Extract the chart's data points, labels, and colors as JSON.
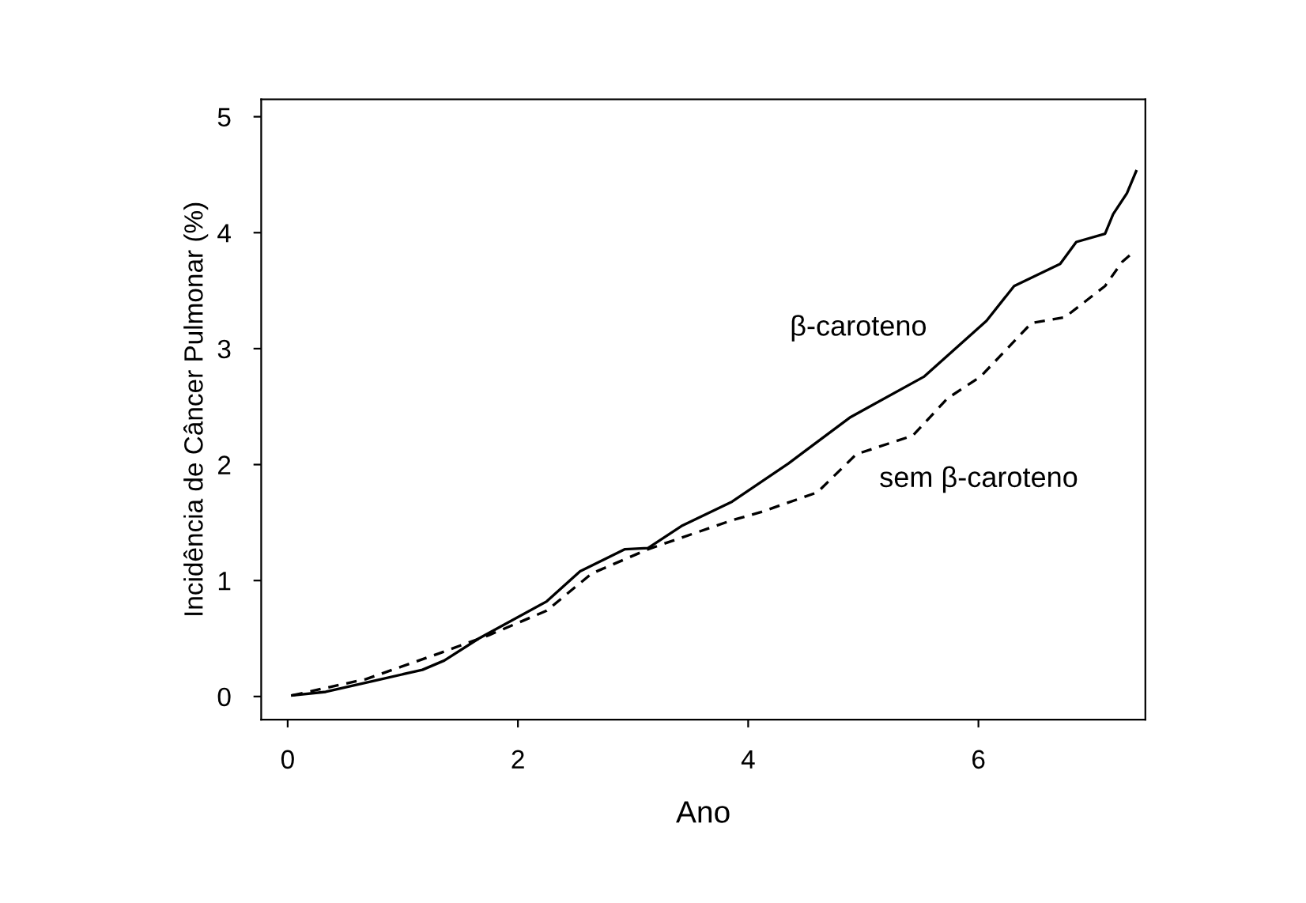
{
  "chart_data": {
    "type": "line",
    "xlabel": "Ano",
    "ylabel": "Incidência de Câncer Pulmonar (%)",
    "xlim": [
      -0.23,
      7.45
    ],
    "ylim": [
      -0.2,
      5.15
    ],
    "xticks": [
      0,
      2,
      4,
      6
    ],
    "yticks": [
      0,
      1,
      2,
      3,
      4,
      5
    ],
    "grid": false,
    "legend": false,
    "marker": "none",
    "series": [
      {
        "name": "β-caroteno",
        "color": "#000000",
        "line_style": "solid",
        "x": [
          0.04,
          0.33,
          0.77,
          1.17,
          1.36,
          1.66,
          2.25,
          2.54,
          2.93,
          3.13,
          3.42,
          3.86,
          4.35,
          4.89,
          5.53,
          6.07,
          6.31,
          6.71,
          6.85,
          7.1,
          7.17,
          7.29,
          7.37
        ],
        "values": [
          0.01,
          0.04,
          0.14,
          0.23,
          0.31,
          0.5,
          0.82,
          1.08,
          1.27,
          1.28,
          1.47,
          1.68,
          2.01,
          2.41,
          2.76,
          3.24,
          3.54,
          3.73,
          3.92,
          3.99,
          4.16,
          4.34,
          4.53
        ]
      },
      {
        "name": "sem β-caroteno",
        "color": "#000000",
        "line_style": "dashed",
        "x": [
          0.04,
          0.68,
          1.31,
          1.75,
          2.25,
          2.64,
          3.13,
          3.86,
          4.11,
          4.6,
          4.94,
          5.43,
          5.73,
          6.02,
          6.46,
          6.75,
          7.1,
          7.25,
          7.32
        ],
        "values": [
          0.01,
          0.15,
          0.37,
          0.53,
          0.74,
          1.06,
          1.27,
          1.52,
          1.59,
          1.76,
          2.09,
          2.25,
          2.57,
          2.76,
          3.22,
          3.27,
          3.54,
          3.75,
          3.81
        ]
      }
    ]
  }
}
